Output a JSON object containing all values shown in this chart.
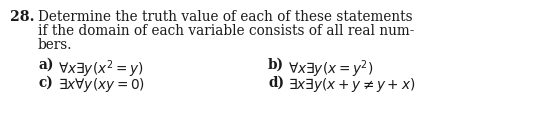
{
  "background_color": "#ffffff",
  "number": "28.",
  "main_text_line1": "Determine the truth value of each of these statements",
  "main_text_line2": "if the domain of each variable consists of all real num-",
  "main_text_line3": "bers.",
  "item_a_label": "a)",
  "item_a_text": "$\\forall x\\exists y(x^2 = y)$",
  "item_b_label": "b)",
  "item_b_text": "$\\forall x\\exists y(x = y^2)$",
  "item_c_label": "c)",
  "item_c_text": "$\\exists x\\forall y(xy = 0)$",
  "item_d_label": "d)",
  "item_d_text": "$\\exists x\\exists y(x + y \\neq y + x)$",
  "fontsize_number": 10.2,
  "fontsize_main": 9.8,
  "fontsize_items": 9.8,
  "text_color": "#1a1a1a",
  "fig_width": 5.35,
  "fig_height": 1.36,
  "dpi": 100
}
